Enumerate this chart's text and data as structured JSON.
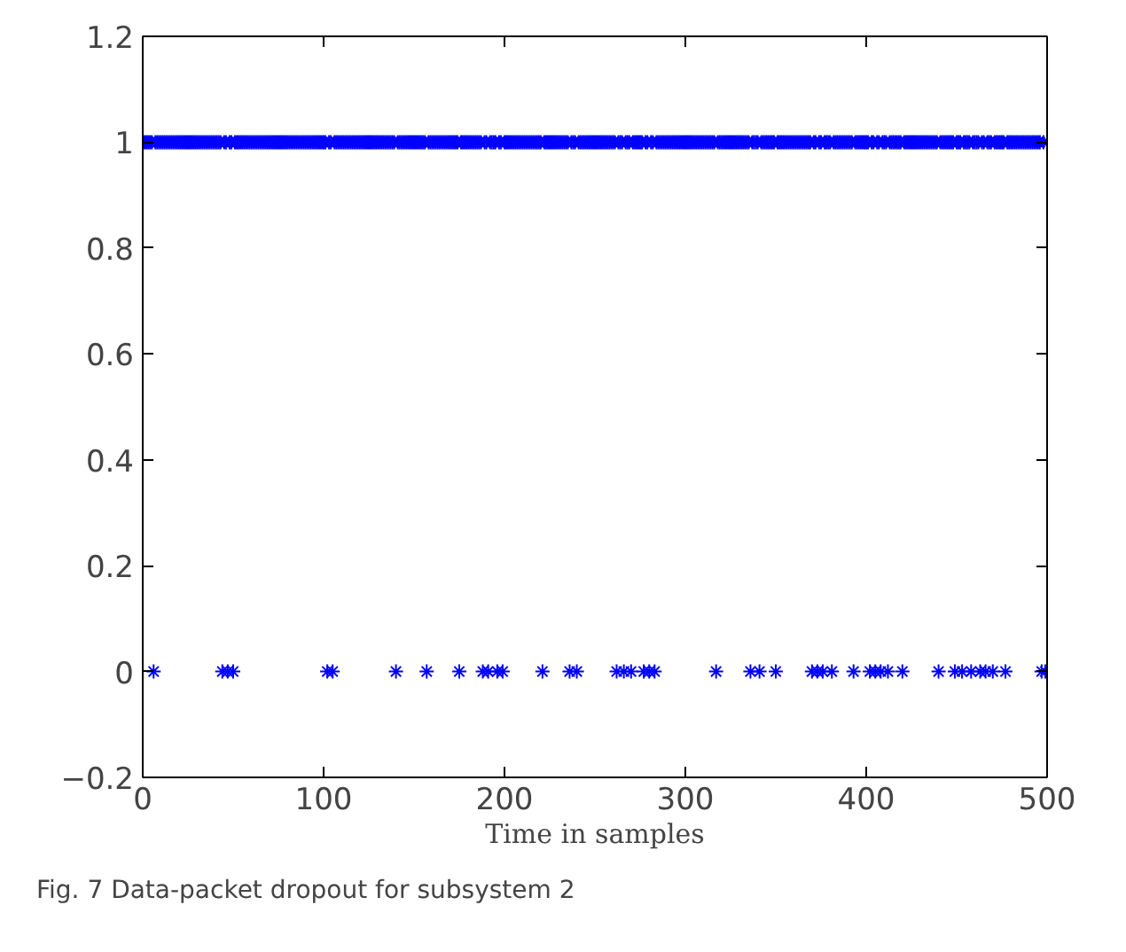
{
  "chart_data": {
    "type": "scatter",
    "xlabel": "Time in samples",
    "annotations": [
      "Fig. 7 Data-packet dropout for subsystem 2"
    ],
    "xlim": [
      0,
      500
    ],
    "xticks": [
      0,
      100,
      200,
      300,
      400,
      500
    ],
    "ylim": [
      -0.2,
      1.2
    ],
    "yticks": [
      {
        "value": -0.2,
        "label": "−0.2"
      },
      0,
      0.2,
      0.4,
      0.6,
      0.8,
      1,
      1.2
    ],
    "grid": false,
    "marker": "cross",
    "series": [
      {
        "color": "#0000ff",
        "x": [
          1,
          2,
          3,
          4,
          5,
          6,
          7,
          8,
          9,
          10,
          11,
          12,
          13,
          14,
          15,
          16,
          17,
          18,
          19,
          20,
          21,
          22,
          23,
          24,
          25,
          26,
          27,
          28,
          29,
          30,
          31,
          32,
          33,
          34,
          35,
          36,
          37,
          38,
          39,
          40,
          41,
          42,
          43,
          44,
          45,
          46,
          47,
          48,
          49,
          50,
          51,
          52,
          53,
          54,
          55,
          56,
          57,
          58,
          59,
          60,
          61,
          62,
          63,
          64,
          65,
          66,
          67,
          68,
          69,
          70,
          71,
          72,
          73,
          74,
          75,
          76,
          77,
          78,
          79,
          80,
          81,
          82,
          83,
          84,
          85,
          86,
          87,
          88,
          89,
          90,
          91,
          92,
          93,
          94,
          95,
          96,
          97,
          98,
          99,
          100,
          101,
          102,
          103,
          104,
          105,
          106,
          107,
          108,
          109,
          110,
          111,
          112,
          113,
          114,
          115,
          116,
          117,
          118,
          119,
          120,
          121,
          122,
          123,
          124,
          125,
          126,
          127,
          128,
          129,
          130,
          131,
          132,
          133,
          134,
          135,
          136,
          137,
          138,
          139,
          140,
          141,
          142,
          143,
          144,
          145,
          146,
          147,
          148,
          149,
          150,
          151,
          152,
          153,
          154,
          155,
          156,
          157,
          158,
          159,
          160,
          161,
          162,
          163,
          164,
          165,
          166,
          167,
          168,
          169,
          170,
          171,
          172,
          173,
          174,
          175,
          176,
          177,
          178,
          179,
          180,
          181,
          182,
          183,
          184,
          185,
          186,
          187,
          188,
          189,
          190,
          191,
          192,
          193,
          194,
          195,
          196,
          197,
          198,
          199,
          200,
          201,
          202,
          203,
          204,
          205,
          206,
          207,
          208,
          209,
          210,
          211,
          212,
          213,
          214,
          215,
          216,
          217,
          218,
          219,
          220,
          221,
          222,
          223,
          224,
          225,
          226,
          227,
          228,
          229,
          230,
          231,
          232,
          233,
          234,
          235,
          236,
          237,
          238,
          239,
          240,
          241,
          242,
          243,
          244,
          245,
          246,
          247,
          248,
          249,
          250,
          251,
          252,
          253,
          254,
          255,
          256,
          257,
          258,
          259,
          260,
          261,
          262,
          263,
          264,
          265,
          266,
          267,
          268,
          269,
          270,
          271,
          272,
          273,
          274,
          275,
          276,
          277,
          278,
          279,
          280,
          281,
          282,
          283,
          284,
          285,
          286,
          287,
          288,
          289,
          290,
          291,
          292,
          293,
          294,
          295,
          296,
          297,
          298,
          299,
          300,
          301,
          302,
          303,
          304,
          305,
          306,
          307,
          308,
          309,
          310,
          311,
          312,
          313,
          314,
          315,
          316,
          317,
          318,
          319,
          320,
          321,
          322,
          323,
          324,
          325,
          326,
          327,
          328,
          329,
          330,
          331,
          332,
          333,
          334,
          335,
          336,
          337,
          338,
          339,
          340,
          341,
          342,
          343,
          344,
          345,
          346,
          347,
          348,
          349,
          350,
          351,
          352,
          353,
          354,
          355,
          356,
          357,
          358,
          359,
          360,
          361,
          362,
          363,
          364,
          365,
          366,
          367,
          368,
          369,
          370,
          371,
          372,
          373,
          374,
          375,
          376,
          377,
          378,
          379,
          380,
          381,
          382,
          383,
          384,
          385,
          386,
          387,
          388,
          389,
          390,
          391,
          392,
          393,
          394,
          395,
          396,
          397,
          398,
          399,
          400,
          401,
          402,
          403,
          404,
          405,
          406,
          407,
          408,
          409,
          410,
          411,
          412,
          413,
          414,
          415,
          416,
          417,
          418,
          419,
          420,
          421,
          422,
          423,
          424,
          425,
          426,
          427,
          428,
          429,
          430,
          431,
          432,
          433,
          434,
          435,
          436,
          437,
          438,
          439,
          440,
          441,
          442,
          443,
          444,
          445,
          446,
          447,
          448,
          449,
          450,
          451,
          452,
          453,
          454,
          455,
          456,
          457,
          458,
          459,
          460,
          461,
          462,
          463,
          464,
          465,
          466,
          467,
          468,
          469,
          470,
          471,
          472,
          473,
          474,
          475,
          476,
          477,
          478,
          479,
          480,
          481,
          482,
          483,
          484,
          485,
          486,
          487,
          488,
          489,
          490,
          491,
          492,
          493,
          494,
          495,
          496,
          497,
          498,
          499,
          500
        ],
        "values": [
          1,
          1,
          1,
          1,
          1,
          0,
          1,
          1,
          1,
          1,
          1,
          1,
          1,
          1,
          1,
          1,
          1,
          1,
          1,
          1,
          1,
          1,
          1,
          1,
          1,
          1,
          1,
          1,
          1,
          1,
          1,
          1,
          1,
          1,
          1,
          1,
          1,
          1,
          1,
          1,
          1,
          1,
          1,
          0,
          1,
          1,
          0,
          1,
          1,
          0,
          1,
          1,
          1,
          1,
          1,
          1,
          1,
          1,
          1,
          1,
          1,
          1,
          1,
          1,
          1,
          1,
          1,
          1,
          1,
          1,
          1,
          1,
          1,
          1,
          1,
          1,
          1,
          1,
          1,
          1,
          1,
          1,
          1,
          1,
          1,
          1,
          1,
          1,
          1,
          1,
          1,
          1,
          1,
          1,
          1,
          1,
          1,
          1,
          1,
          1,
          1,
          0,
          1,
          1,
          0,
          1,
          1,
          1,
          1,
          1,
          1,
          1,
          1,
          1,
          1,
          1,
          1,
          1,
          1,
          1,
          1,
          1,
          1,
          1,
          1,
          1,
          1,
          1,
          1,
          1,
          1,
          1,
          1,
          1,
          1,
          1,
          1,
          1,
          1,
          0,
          1,
          1,
          1,
          1,
          1,
          1,
          1,
          1,
          1,
          1,
          1,
          1,
          1,
          1,
          1,
          1,
          0,
          1,
          1,
          1,
          1,
          1,
          1,
          1,
          1,
          1,
          1,
          1,
          1,
          1,
          1,
          1,
          1,
          1,
          0,
          1,
          1,
          1,
          1,
          1,
          1,
          1,
          1,
          1,
          1,
          1,
          1,
          0,
          1,
          1,
          0,
          1,
          1,
          1,
          1,
          0,
          1,
          1,
          0,
          1,
          1,
          1,
          1,
          1,
          1,
          1,
          1,
          1,
          1,
          1,
          1,
          1,
          1,
          1,
          1,
          1,
          1,
          1,
          1,
          1,
          0,
          1,
          1,
          1,
          1,
          1,
          1,
          1,
          1,
          1,
          1,
          1,
          1,
          1,
          1,
          0,
          1,
          1,
          1,
          0,
          1,
          1,
          1,
          1,
          1,
          1,
          1,
          1,
          1,
          1,
          1,
          1,
          1,
          1,
          1,
          1,
          1,
          1,
          1,
          1,
          1,
          0,
          1,
          1,
          1,
          0,
          1,
          1,
          1,
          0,
          1,
          1,
          1,
          1,
          1,
          1,
          0,
          1,
          1,
          0,
          1,
          1,
          0,
          1,
          1,
          1,
          1,
          1,
          1,
          1,
          1,
          1,
          1,
          1,
          1,
          1,
          1,
          1,
          1,
          1,
          1,
          1,
          1,
          1,
          1,
          1,
          1,
          1,
          1,
          1,
          1,
          1,
          1,
          1,
          1,
          1,
          0,
          1,
          1,
          1,
          1,
          1,
          1,
          1,
          1,
          1,
          1,
          1,
          1,
          1,
          1,
          1,
          1,
          1,
          1,
          0,
          1,
          1,
          1,
          1,
          0,
          1,
          1,
          1,
          1,
          1,
          1,
          1,
          1,
          0,
          1,
          1,
          1,
          1,
          1,
          1,
          1,
          1,
          1,
          1,
          1,
          1,
          1,
          1,
          1,
          1,
          1,
          1,
          1,
          0,
          1,
          1,
          0,
          1,
          1,
          0,
          1,
          1,
          1,
          1,
          0,
          1,
          1,
          1,
          1,
          1,
          1,
          1,
          1,
          1,
          1,
          1,
          0,
          1,
          1,
          1,
          1,
          1,
          1,
          1,
          1,
          0,
          1,
          1,
          0,
          1,
          1,
          0,
          1,
          1,
          1,
          0,
          1,
          1,
          1,
          1,
          1,
          1,
          1,
          0,
          1,
          1,
          1,
          1,
          1,
          1,
          1,
          1,
          1,
          1,
          1,
          1,
          1,
          1,
          1,
          1,
          1,
          1,
          1,
          0,
          1,
          1,
          1,
          1,
          1,
          1,
          1,
          1,
          0,
          1,
          1,
          1,
          0,
          1,
          1,
          1,
          1,
          0,
          1,
          1,
          1,
          1,
          0,
          1,
          1,
          0,
          1,
          1,
          1,
          0,
          1,
          1,
          1,
          1,
          1,
          1,
          0,
          1,
          1,
          1,
          1,
          1,
          1,
          1,
          1,
          1,
          1,
          1,
          1,
          1,
          1,
          1,
          1,
          1,
          1,
          1,
          0,
          1,
          0,
          1
        ]
      }
    ]
  }
}
